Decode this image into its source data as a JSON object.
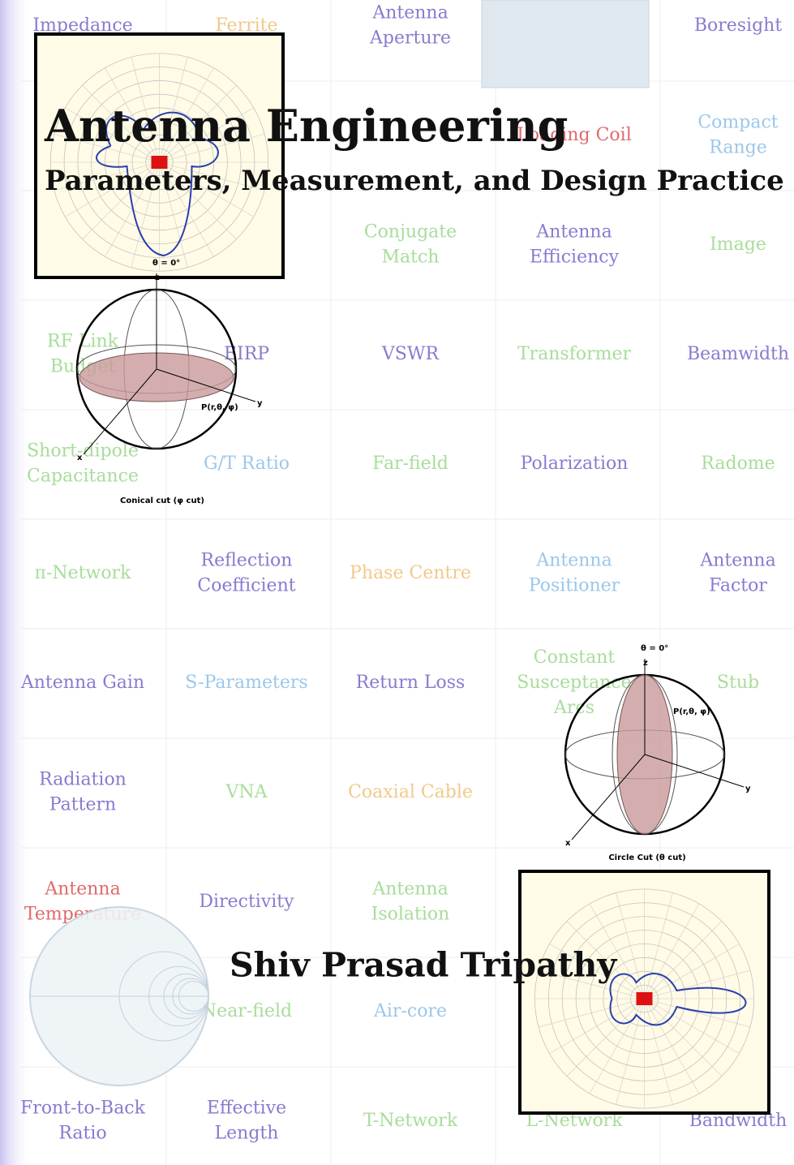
{
  "cover": {
    "title": "Antenna Engineering",
    "subtitle": "Parameters, Measurement, and Design Practice",
    "author": "Shiv Prasad Tripathy"
  },
  "grid": [
    [
      {
        "lines": [
          "Impedance"
        ],
        "color": "#8a7ad0"
      },
      {
        "lines": [
          "Ferrite"
        ],
        "color": "#f2c98a"
      },
      {
        "lines": [
          "Antenna",
          "Aperture"
        ],
        "color": "#8a7ad0"
      },
      null,
      {
        "lines": [
          "Boresight"
        ],
        "color": "#8a7ad0"
      }
    ],
    [
      null,
      null,
      null,
      {
        "lines": [
          "Loading Coil"
        ],
        "color": "#e06a6a"
      },
      {
        "lines": [
          "Compact",
          "Range"
        ],
        "color": "#9cc7ea"
      }
    ],
    [
      null,
      null,
      {
        "lines": [
          "Conjugate",
          "Match"
        ],
        "color": "#a8dd9a"
      },
      {
        "lines": [
          "Antenna",
          "Efficiency"
        ],
        "color": "#8a7ad0"
      },
      {
        "lines": [
          "Image"
        ],
        "color": "#a8dd9a"
      }
    ],
    [
      {
        "lines": [
          "RF Link",
          "Budget"
        ],
        "color": "#a8dd9a"
      },
      {
        "lines": [
          "EIRP"
        ],
        "color": "#8a7ad0"
      },
      {
        "lines": [
          "VSWR"
        ],
        "color": "#8a7ad0"
      },
      {
        "lines": [
          "Transformer"
        ],
        "color": "#a8dd9a"
      },
      {
        "lines": [
          "Beamwidth"
        ],
        "color": "#8a7ad0"
      }
    ],
    [
      {
        "lines": [
          "Short-dipole",
          "Capacitance"
        ],
        "color": "#a8dd9a"
      },
      {
        "lines": [
          "G/T Ratio"
        ],
        "color": "#9cc7ea"
      },
      {
        "lines": [
          "Far-field"
        ],
        "color": "#a8dd9a"
      },
      {
        "lines": [
          "Polarization"
        ],
        "color": "#8a7ad0"
      },
      {
        "lines": [
          "Radome"
        ],
        "color": "#a8dd9a"
      }
    ],
    [
      {
        "lines": [
          "π-Network"
        ],
        "color": "#a8dd9a"
      },
      {
        "lines": [
          "Reflection",
          "Coefficient"
        ],
        "color": "#8a7ad0"
      },
      {
        "lines": [
          "Phase Centre"
        ],
        "color": "#f2c98a"
      },
      {
        "lines": [
          "Antenna",
          "Positioner"
        ],
        "color": "#9cc7ea"
      },
      {
        "lines": [
          "Antenna",
          "Factor"
        ],
        "color": "#8a7ad0"
      }
    ],
    [
      {
        "lines": [
          "Antenna Gain"
        ],
        "color": "#8a7ad0"
      },
      {
        "lines": [
          "S-Parameters"
        ],
        "color": "#9cc7ea"
      },
      {
        "lines": [
          "Return Loss"
        ],
        "color": "#8a7ad0"
      },
      {
        "lines": [
          "Constant",
          "Susceptance",
          "Arcs"
        ],
        "color": "#a8dd9a"
      },
      {
        "lines": [
          "Stub"
        ],
        "color": "#a8dd9a"
      }
    ],
    [
      {
        "lines": [
          "Radiation",
          "Pattern"
        ],
        "color": "#8a7ad0"
      },
      {
        "lines": [
          "VNA"
        ],
        "color": "#a8dd9a"
      },
      {
        "lines": [
          "Coaxial Cable"
        ],
        "color": "#f2c98a"
      },
      null,
      null
    ],
    [
      {
        "lines": [
          "Antenna",
          "Temperature"
        ],
        "color": "#e06a6a"
      },
      {
        "lines": [
          "Directivity"
        ],
        "color": "#8a7ad0"
      },
      {
        "lines": [
          "Antenna",
          "Isolation"
        ],
        "color": "#a8dd9a"
      },
      null,
      null
    ],
    [
      null,
      {
        "lines": [
          "Near-field"
        ],
        "color": "#a8dd9a"
      },
      {
        "lines": [
          "Air-core"
        ],
        "color": "#9cc7ea"
      },
      null,
      null
    ],
    [
      {
        "lines": [
          "Front-to-Back",
          "Ratio"
        ],
        "color": "#8a7ad0"
      },
      {
        "lines": [
          "Effective",
          "Length"
        ],
        "color": "#8a7ad0"
      },
      {
        "lines": [
          "T-Network"
        ],
        "color": "#a8dd9a"
      },
      {
        "lines": [
          "L-Network"
        ],
        "color": "#a8dd9a"
      },
      {
        "lines": [
          "Bandwidth"
        ],
        "color": "#8a7ad0"
      }
    ]
  ],
  "figures": {
    "conical": {
      "caption": "Conical cut (φ cut)",
      "top": "θ = 0°",
      "z": "z",
      "y": "y",
      "x": "x",
      "point": "P(r,θ, φ)"
    },
    "circle": {
      "caption": "Circle Cut (θ cut)",
      "top": "θ = 0°",
      "z": "z",
      "y": "y",
      "x": "x",
      "point": "P(r,θ, φ)"
    }
  }
}
